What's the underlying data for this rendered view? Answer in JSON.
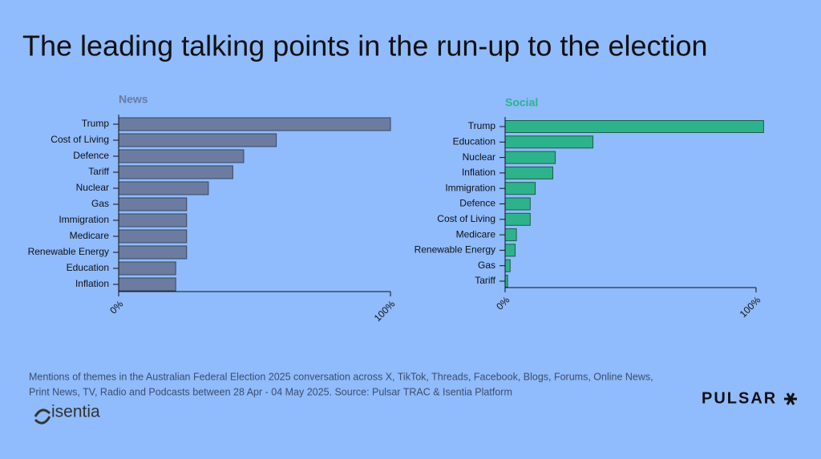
{
  "title": "The leading talking points in the run-up to the election",
  "chart_data": [
    {
      "type": "bar",
      "orientation": "horizontal",
      "title": "News",
      "categories": [
        "Trump",
        "Cost of Living",
        "Defence",
        "Tariff",
        "Nuclear",
        "Gas",
        "Immigration",
        "Medicare",
        "Renewable Energy",
        "Education",
        "Inflation"
      ],
      "values": [
        100,
        58,
        46,
        42,
        33,
        25,
        25,
        25,
        25,
        21,
        21
      ],
      "color": "#6b7ca0",
      "xlim": [
        0,
        100
      ],
      "xticks": [
        {
          "value": 0,
          "label": "0%"
        },
        {
          "value": 100,
          "label": "100%"
        }
      ]
    },
    {
      "type": "bar",
      "orientation": "horizontal",
      "title": "Social",
      "categories": [
        "Trump",
        "Education",
        "Nuclear",
        "Inflation",
        "Immigration",
        "Defence",
        "Cost of Living",
        "Medicare",
        "Renewable Energy",
        "Gas",
        "Tariff"
      ],
      "values": [
        103,
        35,
        20,
        19,
        12,
        10,
        10,
        4.5,
        4,
        2,
        1
      ],
      "color": "#2db38c",
      "xlim": [
        0,
        100
      ],
      "xticks": [
        {
          "value": 0,
          "label": "0%"
        },
        {
          "value": 100,
          "label": "100%"
        }
      ]
    }
  ],
  "footnote": [
    "Mentions of themes in the Australian Federal Election 2025 conversation across X, TikTok, Threads, Facebook, Blogs, Forums, Online News,",
    "Print News, TV, Radio and Podcasts between 28 Apr - 04 May 2025. Source: Pulsar TRAC & Isentia Platform"
  ],
  "logos": [
    "isentia",
    "PULSAR"
  ]
}
